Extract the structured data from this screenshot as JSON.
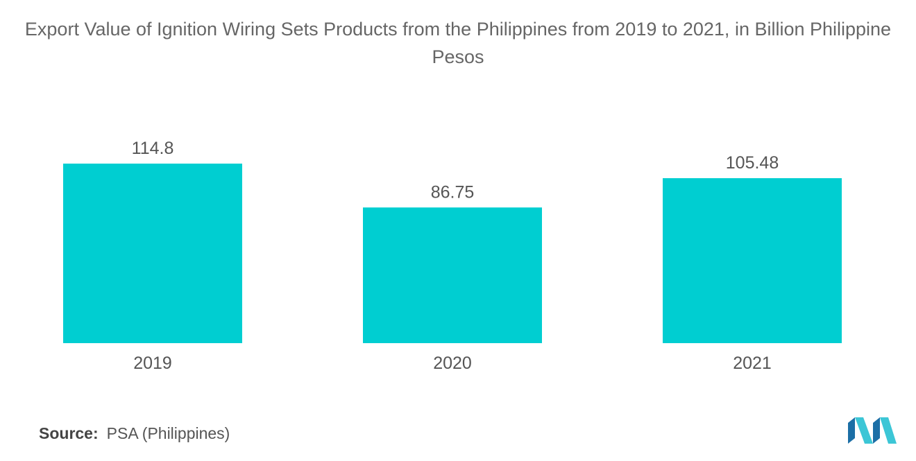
{
  "title": "Export Value of Ignition Wiring Sets Products from the Philippines from 2019 to 2021, in Billion Philippine Pesos",
  "source": {
    "label": "Source:",
    "text": "PSA (Philippines)"
  },
  "logo": {
    "icon": "mordor-intelligence-logo-icon"
  },
  "colors": {
    "bar": "#00CED1",
    "text": "#555555"
  },
  "chart_data": {
    "type": "bar",
    "title": "Export Value of Ignition Wiring Sets Products from the Philippines from 2019 to 2021, in Billion Philippine Pesos",
    "categories": [
      "2019",
      "2020",
      "2021"
    ],
    "values": [
      114.8,
      86.75,
      105.48
    ],
    "value_labels": [
      "114.8",
      "86.75",
      "105.48"
    ],
    "xlabel": "",
    "ylabel": "",
    "ylim": [
      0,
      114.8
    ],
    "grid": false,
    "legend": "none"
  }
}
